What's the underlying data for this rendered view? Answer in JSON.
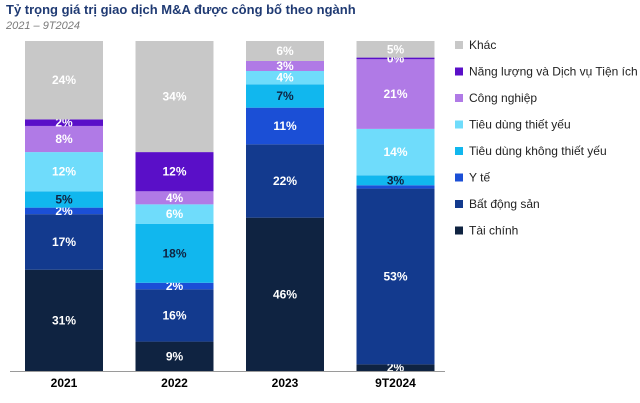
{
  "chart_data": {
    "type": "bar",
    "stacked": true,
    "title": "Tỷ trọng giá trị giao dịch M&A được công bố theo ngành",
    "subtitle": "2021 – 9T2024",
    "categories": [
      "2021",
      "2022",
      "2023",
      "9T2024"
    ],
    "ylim": [
      0,
      100
    ],
    "grid": false,
    "legend_position": "right",
    "series": [
      {
        "name": "Tài chính",
        "color": "#0f2341",
        "label_color": "#ffffff",
        "values": [
          31,
          9,
          46,
          2
        ],
        "labels": [
          "31%",
          "9%",
          "46%",
          "2%"
        ]
      },
      {
        "name": "Bất động sản",
        "color": "#133a8e",
        "label_color": "#ffffff",
        "values": [
          17,
          16,
          22,
          53
        ],
        "labels": [
          "17%",
          "16%",
          "22%",
          "53%"
        ]
      },
      {
        "name": "Y tế",
        "color": "#1b4fd6",
        "label_color": "#ffffff",
        "values": [
          2,
          2,
          11,
          1
        ],
        "labels": [
          "2%",
          "2%",
          "11%",
          ""
        ]
      },
      {
        "name": "Tiêu dùng không thiết yếu",
        "color": "#11b7ee",
        "label_color": "#0f2341",
        "values": [
          5,
          18,
          7,
          3
        ],
        "labels": [
          "5%",
          "18%",
          "7%",
          "3%"
        ]
      },
      {
        "name": "Tiêu dùng thiết yếu",
        "color": "#6fdcfb",
        "label_color": "#ffffff",
        "values": [
          12,
          6,
          4,
          14
        ],
        "labels": [
          "12%",
          "6%",
          "4%",
          "14%"
        ]
      },
      {
        "name": "Công nghiệp",
        "color": "#b07ae6",
        "label_color": "#ffffff",
        "values": [
          8,
          4,
          3,
          21
        ],
        "labels": [
          "8%",
          "4%",
          "3%",
          "21%"
        ]
      },
      {
        "name": "Năng lượng và Dịch vụ Tiện ích",
        "color": "#5a0fc8",
        "label_color": "#ffffff",
        "values": [
          2,
          12,
          0,
          0.5
        ],
        "labels": [
          "2%",
          "12%",
          "",
          "0%"
        ]
      },
      {
        "name": "Khác",
        "color": "#c8c8c8",
        "label_color": "#ffffff",
        "values": [
          24,
          34,
          6,
          5
        ],
        "labels": [
          "24%",
          "34%",
          "6%",
          "5%"
        ]
      }
    ]
  }
}
